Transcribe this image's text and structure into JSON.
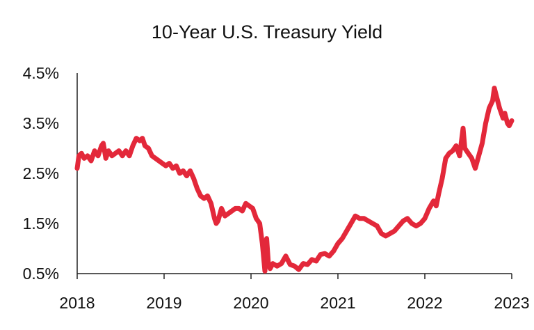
{
  "chart_data": {
    "type": "line",
    "title": "10-Year U.S. Treasury Yield",
    "xlabel": "",
    "ylabel": "",
    "xlim": [
      2018,
      2023
    ],
    "ylim": [
      0.5,
      4.5
    ],
    "x_ticks": [
      2018,
      2019,
      2020,
      2021,
      2022,
      2023
    ],
    "x_tick_labels": [
      "2018",
      "2019",
      "2020",
      "2021",
      "2022",
      "2023"
    ],
    "y_ticks": [
      0.5,
      1.5,
      2.5,
      3.5,
      4.5
    ],
    "y_tick_labels": [
      "0.5%",
      "1.5%",
      "2.5%",
      "3.5%",
      "4.5%"
    ],
    "grid": false,
    "legend": "none",
    "color": "#e3283a",
    "series": [
      {
        "name": "10-Year U.S. Treasury Yield",
        "x": [
          2018.0,
          2018.02,
          2018.05,
          2018.08,
          2018.12,
          2018.16,
          2018.2,
          2018.24,
          2018.28,
          2018.3,
          2018.33,
          2018.36,
          2018.4,
          2018.44,
          2018.48,
          2018.52,
          2018.56,
          2018.6,
          2018.64,
          2018.68,
          2018.72,
          2018.75,
          2018.78,
          2018.82,
          2018.86,
          2018.9,
          2018.94,
          2018.98,
          2019.02,
          2019.06,
          2019.1,
          2019.14,
          2019.18,
          2019.22,
          2019.26,
          2019.3,
          2019.34,
          2019.38,
          2019.42,
          2019.46,
          2019.5,
          2019.54,
          2019.58,
          2019.6,
          2019.62,
          2019.66,
          2019.7,
          2019.74,
          2019.78,
          2019.82,
          2019.86,
          2019.9,
          2019.94,
          2019.98,
          2020.02,
          2020.06,
          2020.1,
          2020.13,
          2020.16,
          2020.18,
          2020.2,
          2020.22,
          2020.25,
          2020.3,
          2020.35,
          2020.4,
          2020.45,
          2020.5,
          2020.55,
          2020.6,
          2020.65,
          2020.7,
          2020.75,
          2020.8,
          2020.85,
          2020.9,
          2020.95,
          2021.0,
          2021.05,
          2021.1,
          2021.15,
          2021.2,
          2021.25,
          2021.3,
          2021.35,
          2021.4,
          2021.45,
          2021.5,
          2021.55,
          2021.6,
          2021.65,
          2021.7,
          2021.75,
          2021.8,
          2021.85,
          2021.9,
          2021.95,
          2022.0,
          2022.05,
          2022.1,
          2022.13,
          2022.16,
          2022.2,
          2022.24,
          2022.28,
          2022.32,
          2022.36,
          2022.4,
          2022.44,
          2022.46,
          2022.5,
          2022.54,
          2022.58,
          2022.62,
          2022.66,
          2022.7,
          2022.74,
          2022.78,
          2022.8,
          2022.83,
          2022.86,
          2022.9,
          2022.92,
          2022.95,
          2022.97,
          2023.0
        ],
        "y": [
          2.6,
          2.85,
          2.9,
          2.8,
          2.85,
          2.75,
          2.95,
          2.85,
          3.05,
          3.1,
          2.8,
          2.95,
          2.85,
          2.9,
          2.95,
          2.85,
          2.95,
          2.85,
          3.05,
          3.2,
          3.15,
          3.2,
          3.05,
          3.0,
          2.85,
          2.8,
          2.75,
          2.7,
          2.65,
          2.7,
          2.6,
          2.65,
          2.5,
          2.55,
          2.45,
          2.55,
          2.4,
          2.2,
          2.05,
          2.0,
          2.05,
          1.9,
          1.6,
          1.5,
          1.55,
          1.8,
          1.65,
          1.7,
          1.75,
          1.8,
          1.8,
          1.75,
          1.9,
          1.85,
          1.8,
          1.6,
          1.5,
          1.1,
          0.55,
          1.2,
          0.7,
          0.6,
          0.7,
          0.65,
          0.7,
          0.85,
          0.68,
          0.65,
          0.58,
          0.7,
          0.68,
          0.78,
          0.75,
          0.88,
          0.9,
          0.85,
          0.95,
          1.1,
          1.2,
          1.35,
          1.5,
          1.65,
          1.6,
          1.6,
          1.55,
          1.5,
          1.45,
          1.3,
          1.25,
          1.3,
          1.35,
          1.45,
          1.55,
          1.6,
          1.5,
          1.45,
          1.5,
          1.6,
          1.8,
          1.95,
          1.85,
          2.1,
          2.4,
          2.8,
          2.9,
          2.95,
          3.05,
          2.85,
          3.4,
          3.0,
          2.9,
          2.8,
          2.6,
          2.85,
          3.1,
          3.5,
          3.8,
          3.95,
          4.2,
          4.0,
          3.8,
          3.6,
          3.7,
          3.5,
          3.45,
          3.55
        ]
      }
    ]
  }
}
